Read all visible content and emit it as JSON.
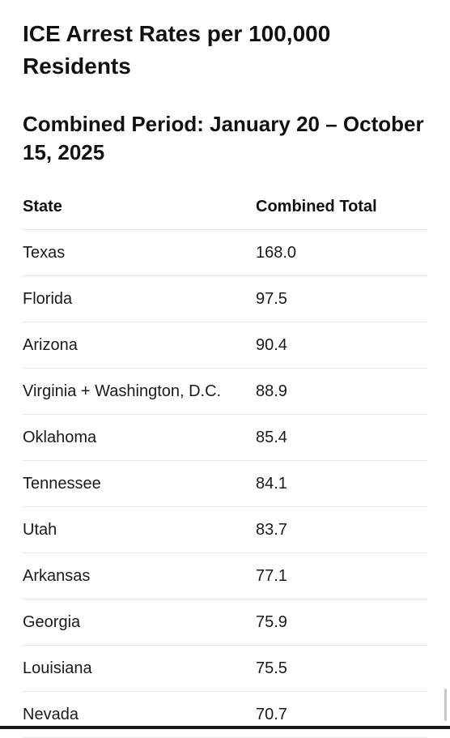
{
  "title": "ICE Arrest Rates per 100,000 Residents",
  "subtitle": "Combined Period: January 20 – October 15, 2025",
  "table": {
    "headers": [
      "State",
      "Combined Total"
    ],
    "rows": [
      [
        "Texas",
        "168.0"
      ],
      [
        "Florida",
        "97.5"
      ],
      [
        "Arizona",
        "90.4"
      ],
      [
        "Virginia + Washington, D.C.",
        "88.9"
      ],
      [
        "Oklahoma",
        "85.4"
      ],
      [
        "Tennessee",
        "84.1"
      ],
      [
        "Utah",
        "83.7"
      ],
      [
        "Arkansas",
        "77.1"
      ],
      [
        "Georgia",
        "75.9"
      ],
      [
        "Louisiana",
        "75.5"
      ],
      [
        "Nevada",
        "70.7"
      ]
    ]
  }
}
